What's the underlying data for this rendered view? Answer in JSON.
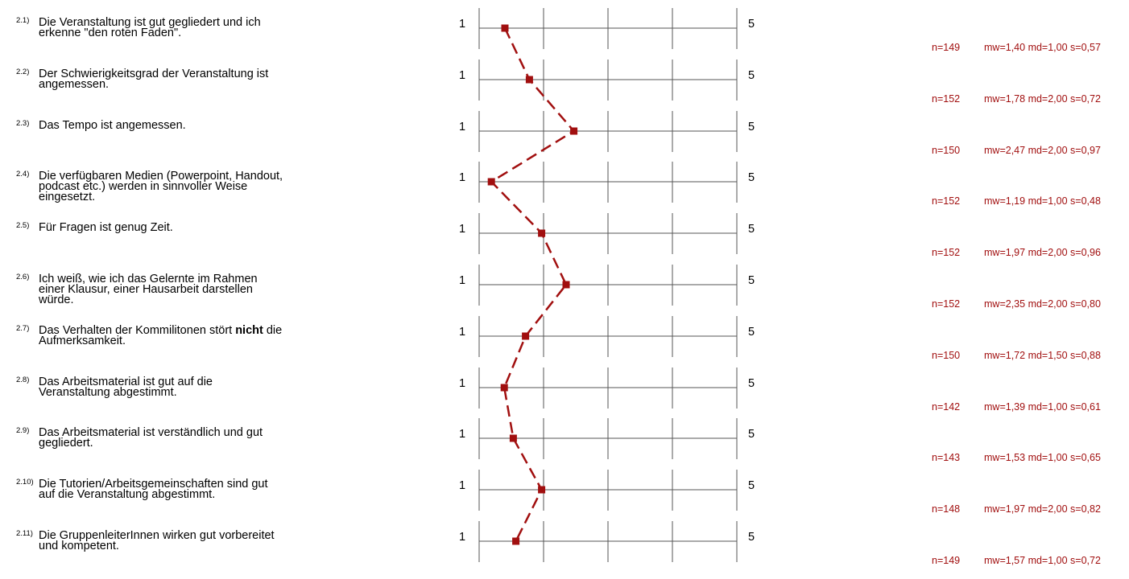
{
  "colors": {
    "line": "#a10f0f",
    "grid": "#555555",
    "text": "#000000"
  },
  "chart_data": {
    "type": "line",
    "xlim": [
      1,
      5
    ],
    "scale_low_label": "1",
    "scale_high_label": "5",
    "items": [
      {
        "num": "2.1)",
        "text": [
          "Die Veranstaltung ist gut gegliedert und ich",
          "erkenne \"den roten Faden\"."
        ],
        "n": "n=149",
        "mw": "mw=1,40",
        "md": "md=1,00",
        "s": "s=0,57",
        "value": 1.4
      },
      {
        "num": "2.2)",
        "text": [
          "Der Schwierigkeitsgrad der Veranstaltung ist",
          "angemessen."
        ],
        "n": "n=152",
        "mw": "mw=1,78",
        "md": "md=2,00",
        "s": "s=0,72",
        "value": 1.78
      },
      {
        "num": "2.3)",
        "text": [
          "Das Tempo ist angemessen."
        ],
        "n": "n=150",
        "mw": "mw=2,47",
        "md": "md=2,00",
        "s": "s=0,97",
        "value": 2.47
      },
      {
        "num": "2.4)",
        "text": [
          "Die verfügbaren Medien (Powerpoint, Handout,",
          "podcast etc.) werden in sinnvoller Weise",
          "eingesetzt."
        ],
        "n": "n=152",
        "mw": "mw=1,19",
        "md": "md=1,00",
        "s": "s=0,48",
        "value": 1.19
      },
      {
        "num": "2.5)",
        "text": [
          "Für Fragen ist genug Zeit."
        ],
        "n": "n=152",
        "mw": "mw=1,97",
        "md": "md=2,00",
        "s": "s=0,96",
        "value": 1.97
      },
      {
        "num": "2.6)",
        "text": [
          "Ich weiß, wie ich das Gelernte im Rahmen",
          "einer Klausur, einer Hausarbeit darstellen",
          "würde."
        ],
        "n": "n=152",
        "mw": "mw=2,35",
        "md": "md=2,00",
        "s": "s=0,80",
        "value": 2.35
      },
      {
        "num": "2.7)",
        "text": [
          "Das Verhalten der Kommilitonen stört ",
          "nicht",
          " die",
          "Aufmerksamkeit."
        ],
        "bold_index": 1,
        "n": "n=150",
        "mw": "mw=1,72",
        "md": "md=1,50",
        "s": "s=0,88",
        "value": 1.72
      },
      {
        "num": "2.8)",
        "text": [
          "Das Arbeitsmaterial ist gut auf die",
          "Veranstaltung abgestimmt."
        ],
        "n": "n=142",
        "mw": "mw=1,39",
        "md": "md=1,00",
        "s": "s=0,61",
        "value": 1.39
      },
      {
        "num": "2.9)",
        "text": [
          "Das Arbeitsmaterial ist verständlich und gut",
          "gegliedert."
        ],
        "n": "n=143",
        "mw": "mw=1,53",
        "md": "md=1,00",
        "s": "s=0,65",
        "value": 1.53
      },
      {
        "num": "2.10)",
        "text": [
          "Die Tutorien/Arbeitsgemeinschaften sind gut",
          "auf die Veranstaltung abgestimmt."
        ],
        "n": "n=148",
        "mw": "mw=1,97",
        "md": "md=2,00",
        "s": "s=0,82",
        "value": 1.97
      },
      {
        "num": "2.11)",
        "text": [
          "Die GruppenleiterInnen wirken gut vorbereitet",
          "und kompetent."
        ],
        "n": "n=149",
        "mw": "mw=1,57",
        "md": "md=1,00",
        "s": "s=0,72",
        "value": 1.57
      }
    ]
  }
}
